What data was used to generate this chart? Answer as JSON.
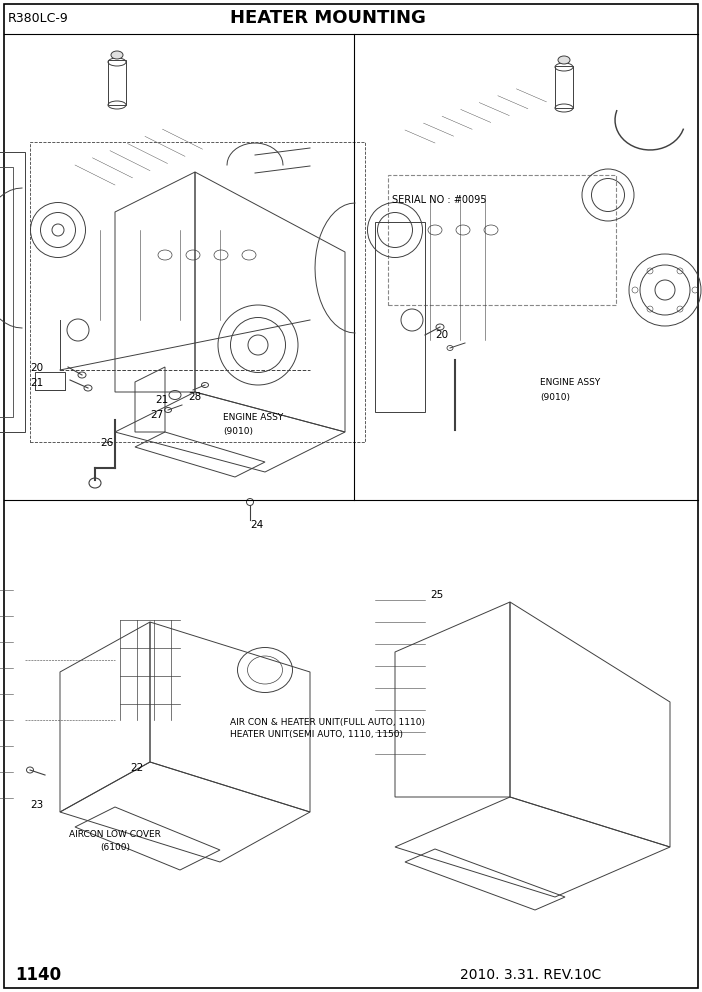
{
  "title": "HEATER MOUNTING",
  "model": "R380LC-9",
  "page": "1140",
  "date": "2010. 3.31. REV.10C",
  "bg_color": "#ffffff",
  "border_color": "#000000",
  "text_color": "#000000",
  "lc": "#404040",
  "serial_note": "SERIAL NO : #0095",
  "fig_width": 7.02,
  "fig_height": 9.92,
  "dpi": 100
}
